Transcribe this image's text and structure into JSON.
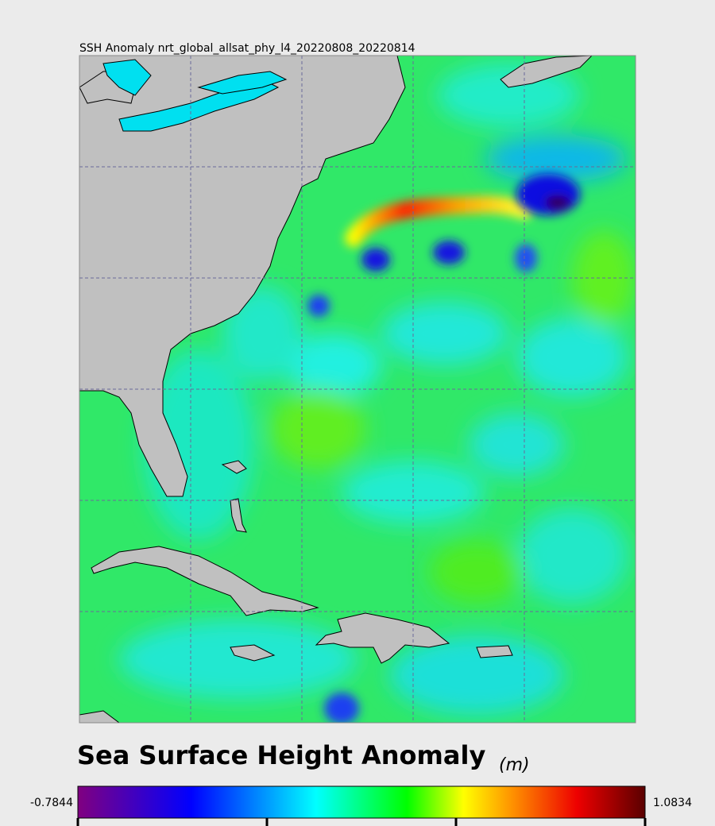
{
  "map": {
    "title": "SSH Anomaly nrt_global_allsat_phy_l4_20220808_20220814"
  },
  "colorbar": {
    "title": "Sea Surface Height Anomaly",
    "unit": "(m)",
    "min": -0.7844,
    "max": 1.0834
  }
}
